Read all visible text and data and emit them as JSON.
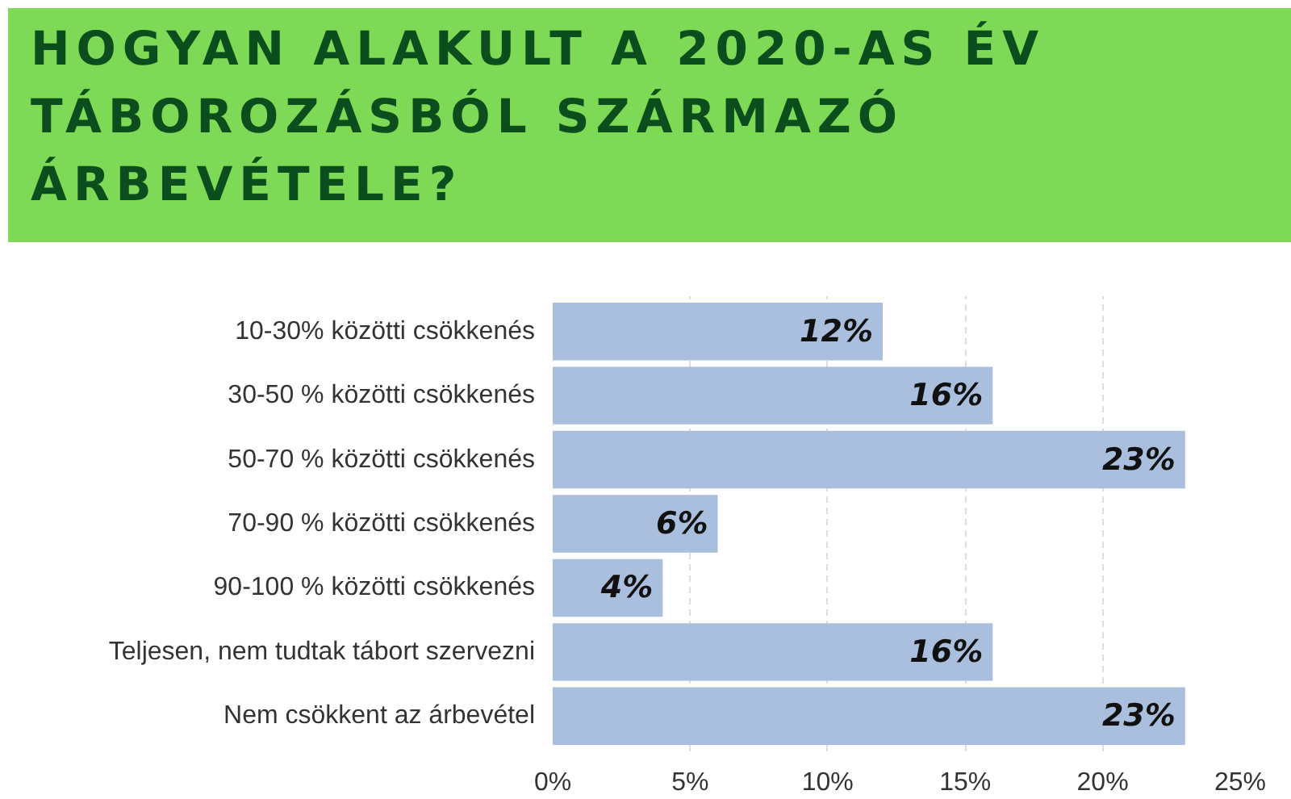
{
  "chart_data": {
    "type": "bar",
    "orientation": "horizontal",
    "title": "HOGYAN ALAKULT A 2020-AS ÉV TÁBOROZÁSBÓL SZÁRMAZÓ ÁRBEVÉTELE?",
    "categories": [
      "10-30% közötti csökkenés",
      "30-50 % közötti csökkenés",
      "50-70 % közötti csökkenés",
      "70-90 % közötti csökkenés",
      "90-100 % közötti csökkenés",
      "Teljesen, nem tudtak tábort szervezni",
      "Nem csökkent az árbevétel"
    ],
    "values": [
      12,
      16,
      23,
      6,
      4,
      16,
      23
    ],
    "value_labels": [
      "12%",
      "16%",
      "23%",
      "6%",
      "4%",
      "16%",
      "23%"
    ],
    "color": "#a9bfdd",
    "xlim": [
      0,
      25
    ],
    "xticks": [
      {
        "value": 0,
        "label": "0%"
      },
      {
        "value": 5,
        "label": "5%"
      },
      {
        "value": 10,
        "label": "10%"
      },
      {
        "value": 15,
        "label": "15%"
      },
      {
        "value": 20,
        "label": "20%"
      },
      {
        "value": 25,
        "label": "25%"
      }
    ],
    "grid": "x"
  }
}
